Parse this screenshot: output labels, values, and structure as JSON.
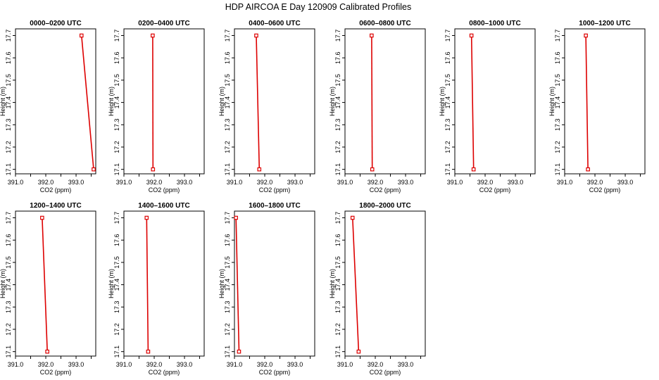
{
  "suptitle": "HDP AIRCOA E  Day 120909  Calibrated Profiles",
  "colors": {
    "line": "#dd0000",
    "marker": "#dd0000",
    "axes": "#000000"
  },
  "chart_data": [
    {
      "type": "line",
      "title": "0000–0200 UTC",
      "xlabel": "CO2 (ppm)",
      "ylabel": "Height (m)",
      "xlim": [
        391.0,
        393.65
      ],
      "ylim": [
        17.08,
        17.73
      ],
      "xticks": [
        "391.0",
        "392.0",
        "393.0"
      ],
      "yticks": [
        "17.1",
        "17.2",
        "17.3",
        "17.4",
        "17.5",
        "17.6",
        "17.7"
      ],
      "x": [
        393.18,
        393.58
      ],
      "y": [
        17.7,
        17.1
      ]
    },
    {
      "type": "line",
      "title": "0200–0400 UTC",
      "xlabel": "CO2 (ppm)",
      "ylabel": "Height (m)",
      "xlim": [
        391.0,
        393.65
      ],
      "ylim": [
        17.08,
        17.73
      ],
      "xticks": [
        "391.0",
        "392.0",
        "393.0"
      ],
      "yticks": [
        "17.1",
        "17.2",
        "17.3",
        "17.4",
        "17.5",
        "17.6",
        "17.7"
      ],
      "x": [
        391.95,
        391.96
      ],
      "y": [
        17.7,
        17.1
      ]
    },
    {
      "type": "line",
      "title": "0400–0600 UTC",
      "xlabel": "CO2 (ppm)",
      "ylabel": "Height (m)",
      "xlim": [
        391.0,
        393.65
      ],
      "ylim": [
        17.08,
        17.73
      ],
      "xticks": [
        "391.0",
        "392.0",
        "393.0"
      ],
      "yticks": [
        "17.1",
        "17.2",
        "17.3",
        "17.4",
        "17.5",
        "17.6",
        "17.7"
      ],
      "x": [
        391.72,
        391.82
      ],
      "y": [
        17.7,
        17.1
      ]
    },
    {
      "type": "line",
      "title": "0600–0800 UTC",
      "xlabel": "CO2 (ppm)",
      "ylabel": "Height (m)",
      "xlim": [
        391.0,
        393.65
      ],
      "ylim": [
        17.08,
        17.73
      ],
      "xticks": [
        "391.0",
        "392.0",
        "393.0"
      ],
      "yticks": [
        "17.1",
        "17.2",
        "17.3",
        "17.4",
        "17.5",
        "17.6",
        "17.7"
      ],
      "x": [
        391.88,
        391.9
      ],
      "y": [
        17.7,
        17.1
      ]
    },
    {
      "type": "line",
      "title": "0800–1000 UTC",
      "xlabel": "CO2 (ppm)",
      "ylabel": "Height (m)",
      "xlim": [
        391.0,
        393.65
      ],
      "ylim": [
        17.08,
        17.73
      ],
      "xticks": [
        "391.0",
        "392.0",
        "393.0"
      ],
      "yticks": [
        "17.1",
        "17.2",
        "17.3",
        "17.4",
        "17.5",
        "17.6",
        "17.7"
      ],
      "x": [
        391.55,
        391.62
      ],
      "y": [
        17.7,
        17.1
      ]
    },
    {
      "type": "line",
      "title": "1000–1200 UTC",
      "xlabel": "CO2 (ppm)",
      "ylabel": "Height (m)",
      "xlim": [
        391.0,
        393.65
      ],
      "ylim": [
        17.08,
        17.73
      ],
      "xticks": [
        "391.0",
        "392.0",
        "393.0"
      ],
      "yticks": [
        "17.1",
        "17.2",
        "17.3",
        "17.4",
        "17.5",
        "17.6",
        "17.7"
      ],
      "x": [
        391.7,
        391.77
      ],
      "y": [
        17.7,
        17.1
      ]
    },
    {
      "type": "line",
      "title": "1200–1400 UTC",
      "xlabel": "CO2 (ppm)",
      "ylabel": "Height (m)",
      "xlim": [
        391.0,
        393.65
      ],
      "ylim": [
        17.08,
        17.73
      ],
      "xticks": [
        "391.0",
        "392.0",
        "393.0"
      ],
      "yticks": [
        "17.1",
        "17.2",
        "17.3",
        "17.4",
        "17.5",
        "17.6",
        "17.7"
      ],
      "x": [
        391.88,
        392.05
      ],
      "y": [
        17.7,
        17.1
      ]
    },
    {
      "type": "line",
      "title": "1400–1600 UTC",
      "xlabel": "CO2 (ppm)",
      "ylabel": "Height (m)",
      "xlim": [
        391.0,
        393.65
      ],
      "ylim": [
        17.08,
        17.73
      ],
      "xticks": [
        "391.0",
        "392.0",
        "393.0"
      ],
      "yticks": [
        "17.1",
        "17.2",
        "17.3",
        "17.4",
        "17.5",
        "17.6",
        "17.7"
      ],
      "x": [
        391.75,
        391.8
      ],
      "y": [
        17.7,
        17.1
      ]
    },
    {
      "type": "line",
      "title": "1600–1800 UTC",
      "xlabel": "CO2 (ppm)",
      "ylabel": "Height (m)",
      "xlim": [
        391.0,
        393.65
      ],
      "ylim": [
        17.08,
        17.73
      ],
      "xticks": [
        "391.0",
        "392.0",
        "393.0"
      ],
      "yticks": [
        "17.1",
        "17.2",
        "17.3",
        "17.4",
        "17.5",
        "17.6",
        "17.7"
      ],
      "x": [
        391.05,
        391.15
      ],
      "y": [
        17.7,
        17.1
      ]
    },
    {
      "type": "line",
      "title": "1800–2000 UTC",
      "xlabel": "CO2 (ppm)",
      "ylabel": "Height (m)",
      "xlim": [
        391.0,
        393.65
      ],
      "ylim": [
        17.08,
        17.73
      ],
      "xticks": [
        "391.0",
        "392.0",
        "393.0"
      ],
      "yticks": [
        "17.1",
        "17.2",
        "17.3",
        "17.4",
        "17.5",
        "17.6",
        "17.7"
      ],
      "x": [
        391.25,
        391.45
      ],
      "y": [
        17.7,
        17.1
      ]
    }
  ]
}
